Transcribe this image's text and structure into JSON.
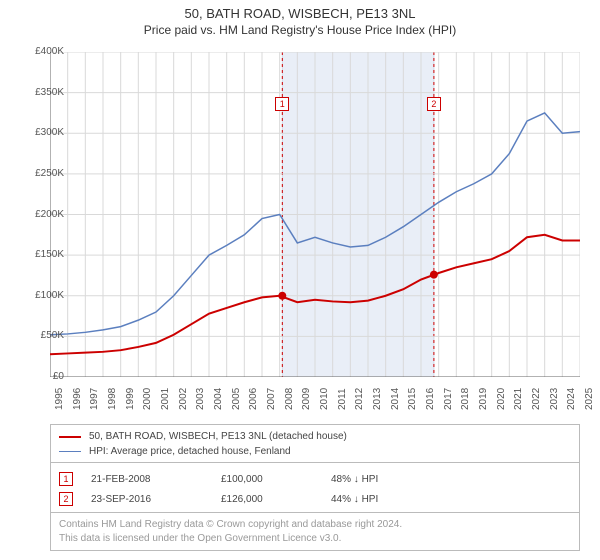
{
  "title": "50, BATH ROAD, WISBECH, PE13 3NL",
  "subtitle": "Price paid vs. HM Land Registry's House Price Index (HPI)",
  "chart": {
    "type": "line",
    "background_color": "#ffffff",
    "grid_color": "#d9d9d9",
    "axis_color": "#666666",
    "xlim": [
      1995,
      2025
    ],
    "ylim": [
      0,
      400000
    ],
    "ytick_step": 50000,
    "ytick_prefix": "£",
    "ytick_suffix_rule": "K_above_zero",
    "xticks": [
      1995,
      1996,
      1997,
      1998,
      1999,
      2000,
      2001,
      2002,
      2003,
      2004,
      2005,
      2006,
      2007,
      2008,
      2009,
      2010,
      2011,
      2012,
      2013,
      2014,
      2015,
      2016,
      2017,
      2018,
      2019,
      2020,
      2021,
      2022,
      2023,
      2024,
      2025
    ],
    "label_fontsize": 10,
    "band": {
      "x_start": 2008.15,
      "x_end": 2016.73,
      "fill": "#e9eef7",
      "border": "#d0d8e8",
      "marker_left": {
        "label": "1",
        "color": "#cc0000"
      },
      "marker_right": {
        "label": "2",
        "color": "#cc0000"
      }
    },
    "series": [
      {
        "name": "price_paid",
        "label": "50, BATH ROAD, WISBECH, PE13 3NL (detached house)",
        "color": "#cc0000",
        "line_width": 2,
        "points": [
          [
            1995,
            28000
          ],
          [
            1996,
            29000
          ],
          [
            1997,
            30000
          ],
          [
            1998,
            31000
          ],
          [
            1999,
            33000
          ],
          [
            2000,
            37000
          ],
          [
            2001,
            42000
          ],
          [
            2002,
            52000
          ],
          [
            2003,
            65000
          ],
          [
            2004,
            78000
          ],
          [
            2005,
            85000
          ],
          [
            2006,
            92000
          ],
          [
            2007,
            98000
          ],
          [
            2008,
            100000
          ],
          [
            2009,
            92000
          ],
          [
            2010,
            95000
          ],
          [
            2011,
            93000
          ],
          [
            2012,
            92000
          ],
          [
            2013,
            94000
          ],
          [
            2014,
            100000
          ],
          [
            2015,
            108000
          ],
          [
            2016,
            120000
          ],
          [
            2017,
            128000
          ],
          [
            2018,
            135000
          ],
          [
            2019,
            140000
          ],
          [
            2020,
            145000
          ],
          [
            2021,
            155000
          ],
          [
            2022,
            172000
          ],
          [
            2023,
            175000
          ],
          [
            2024,
            168000
          ],
          [
            2025,
            168000
          ]
        ]
      },
      {
        "name": "hpi",
        "label": "HPI: Average price, detached house, Fenland",
        "color": "#5b7fbf",
        "line_width": 1.5,
        "points": [
          [
            1995,
            52000
          ],
          [
            1996,
            53000
          ],
          [
            1997,
            55000
          ],
          [
            1998,
            58000
          ],
          [
            1999,
            62000
          ],
          [
            2000,
            70000
          ],
          [
            2001,
            80000
          ],
          [
            2002,
            100000
          ],
          [
            2003,
            125000
          ],
          [
            2004,
            150000
          ],
          [
            2005,
            162000
          ],
          [
            2006,
            175000
          ],
          [
            2007,
            195000
          ],
          [
            2008,
            200000
          ],
          [
            2009,
            165000
          ],
          [
            2010,
            172000
          ],
          [
            2011,
            165000
          ],
          [
            2012,
            160000
          ],
          [
            2013,
            162000
          ],
          [
            2014,
            172000
          ],
          [
            2015,
            185000
          ],
          [
            2016,
            200000
          ],
          [
            2017,
            215000
          ],
          [
            2018,
            228000
          ],
          [
            2019,
            238000
          ],
          [
            2020,
            250000
          ],
          [
            2021,
            275000
          ],
          [
            2022,
            315000
          ],
          [
            2023,
            325000
          ],
          [
            2024,
            300000
          ],
          [
            2025,
            302000
          ]
        ]
      }
    ],
    "sale_markers": [
      {
        "x": 2008.15,
        "y": 100000,
        "color": "#cc0000"
      },
      {
        "x": 2016.73,
        "y": 126000,
        "color": "#cc0000"
      }
    ]
  },
  "legend": {
    "items": [
      {
        "color": "#cc0000",
        "width": 2,
        "label_path": "chart.series.0.label"
      },
      {
        "color": "#5b7fbf",
        "width": 1.5,
        "label_path": "chart.series.1.label"
      }
    ]
  },
  "sales": [
    {
      "marker": "1",
      "marker_color": "#cc0000",
      "date": "21-FEB-2008",
      "price": "£100,000",
      "hpi": "48% ↓ HPI"
    },
    {
      "marker": "2",
      "marker_color": "#cc0000",
      "date": "23-SEP-2016",
      "price": "£126,000",
      "hpi": "44% ↓ HPI"
    }
  ],
  "footer": {
    "line1": "Contains HM Land Registry data © Crown copyright and database right 2024.",
    "line2": "This data is licensed under the Open Government Licence v3.0."
  }
}
